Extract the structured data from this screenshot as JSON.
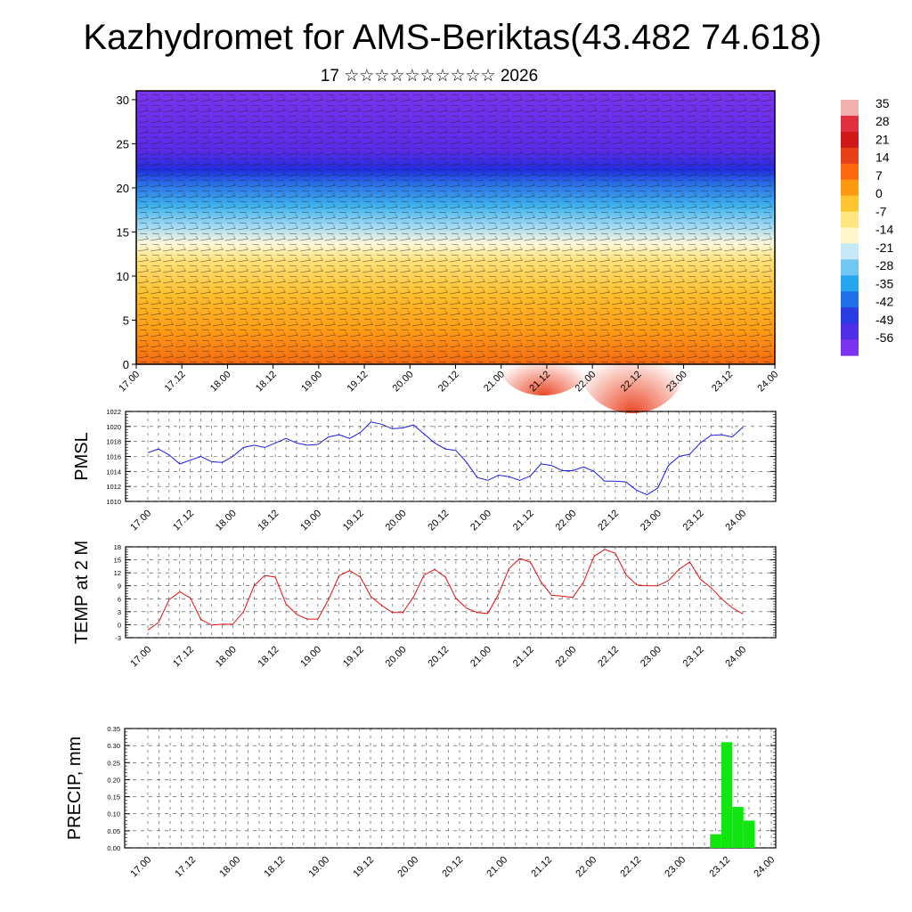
{
  "title": "Kazhydromet for AMS-Beriktas(43.482 74.618)",
  "subtitle": "17 ☆☆☆☆☆☆☆☆☆☆ 2026",
  "colorbar": {
    "labels": [
      "35",
      "28",
      "21",
      "14",
      "7",
      "0",
      "-7",
      "-14",
      "-21",
      "-28",
      "-35",
      "-42",
      "-49",
      "-56"
    ],
    "colors": [
      "#7a2cf0",
      "#3f2bf0",
      "#1e3ff0",
      "#1f7ff0",
      "#2fb8f0",
      "#9fdcf5",
      "#fff0a0",
      "#ffd84a",
      "#ffb020",
      "#ff8a10",
      "#ff5a10",
      "#e02a10",
      "#d01020",
      "#f0b0b0"
    ]
  },
  "chart_data": [
    {
      "type": "heatmap",
      "name": "cross-section",
      "x_tick_labels": [
        "17.00",
        "17.12",
        "18.00",
        "18.12",
        "19.00",
        "19.12",
        "20.00",
        "20.12",
        "21.00",
        "21.12",
        "22.00",
        "22.12",
        "23.00",
        "23.12",
        "24.00"
      ],
      "y_tick_labels": [
        "0",
        "5",
        "10",
        "15",
        "20",
        "25",
        "30"
      ],
      "ylim": [
        0,
        31
      ],
      "color_scale_min": -56,
      "color_scale_max": 35,
      "description_bands_level": [
        0,
        5,
        10,
        13.5,
        15,
        17,
        20,
        22,
        25,
        31
      ],
      "band_values": [
        14,
        7,
        0,
        -7,
        -14,
        -28,
        -42,
        -56,
        -56,
        -56
      ]
    },
    {
      "type": "line",
      "ylabel": "PMSL",
      "ylim": [
        1010,
        1022
      ],
      "y_tick_labels": [
        "1010",
        "1012",
        "1014",
        "1016",
        "1018",
        "1020",
        "1022"
      ],
      "x_tick_labels": [
        "17.00",
        "17.12",
        "18.00",
        "18.12",
        "19.00",
        "19.12",
        "20.00",
        "20.12",
        "21.00",
        "21.12",
        "22.00",
        "22.12",
        "23.00",
        "23.12",
        "24.00"
      ],
      "color": "#1a1ae6",
      "values": [
        1016.5,
        1017.0,
        1016.2,
        1015.0,
        1015.5,
        1016.0,
        1015.3,
        1015.2,
        1016.0,
        1017.2,
        1017.5,
        1017.2,
        1017.8,
        1018.4,
        1017.8,
        1017.5,
        1017.6,
        1018.6,
        1018.9,
        1018.4,
        1019.2,
        1020.6,
        1020.3,
        1019.7,
        1019.8,
        1020.2,
        1019.0,
        1017.8,
        1017.0,
        1016.8,
        1015.2,
        1013.2,
        1012.8,
        1013.5,
        1013.3,
        1012.8,
        1013.4,
        1015.0,
        1014.8,
        1014.1,
        1014.1,
        1014.6,
        1014.0,
        1012.7,
        1012.7,
        1012.6,
        1011.5,
        1010.9,
        1011.8,
        1014.8,
        1016.0,
        1016.3,
        1017.8,
        1018.8,
        1018.9,
        1018.6,
        1019.9
      ]
    },
    {
      "type": "line",
      "ylabel": "TEMP at 2 M",
      "ylim": [
        -3,
        18
      ],
      "y_tick_labels": [
        "-3",
        "0",
        "3",
        "6",
        "9",
        "12",
        "15",
        "18"
      ],
      "x_tick_labels": [
        "17.00",
        "17.12",
        "18.00",
        "18.12",
        "19.00",
        "19.12",
        "20.00",
        "20.12",
        "21.00",
        "21.12",
        "22.00",
        "22.12",
        "23.00",
        "23.12",
        "24.00"
      ],
      "color": "#e01010",
      "values": [
        -1.2,
        0.5,
        5.8,
        7.6,
        6.2,
        1.2,
        -0.1,
        0.1,
        0.1,
        3.0,
        9.0,
        11.4,
        11.0,
        4.8,
        2.4,
        1.3,
        1.3,
        5.8,
        11.3,
        12.5,
        11.0,
        6.5,
        4.5,
        2.8,
        2.8,
        6.4,
        11.5,
        12.8,
        11.0,
        6.1,
        3.8,
        2.8,
        2.6,
        7.0,
        13.0,
        15.3,
        14.5,
        9.9,
        6.8,
        6.6,
        6.3,
        9.8,
        15.8,
        17.4,
        16.5,
        11.6,
        9.2,
        9.0,
        9.0,
        10.2,
        12.8,
        14.5,
        10.5,
        8.6,
        6.0,
        3.9,
        2.5
      ]
    },
    {
      "type": "bar",
      "ylabel": "PRECIP, mm",
      "ylim": [
        0,
        0.35
      ],
      "y_tick_labels": [
        "0.00",
        "0.05",
        "0.10",
        "0.15",
        "0.20",
        "0.25",
        "0.30",
        "0.35"
      ],
      "x_tick_labels": [
        "17.00",
        "17.12",
        "18.00",
        "18.12",
        "19.00",
        "19.12",
        "20.00",
        "20.12",
        "21.00",
        "21.12",
        "22.00",
        "22.12",
        "23.00",
        "23.12",
        "24.00"
      ],
      "color": "#11e611",
      "values": [
        0,
        0,
        0,
        0,
        0,
        0,
        0,
        0,
        0,
        0,
        0,
        0,
        0,
        0,
        0,
        0,
        0,
        0,
        0,
        0,
        0,
        0,
        0,
        0,
        0,
        0,
        0,
        0,
        0,
        0,
        0,
        0,
        0,
        0,
        0,
        0,
        0,
        0,
        0,
        0,
        0,
        0,
        0,
        0,
        0,
        0,
        0,
        0,
        0,
        0,
        0,
        0.04,
        0.31,
        0.12,
        0.08,
        0,
        0
      ]
    }
  ]
}
